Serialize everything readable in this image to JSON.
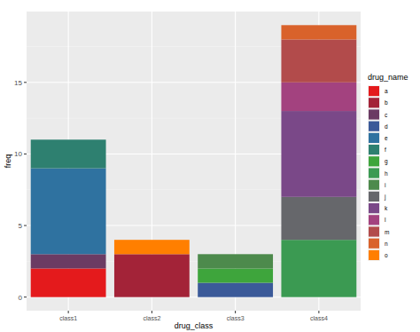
{
  "chart_data": {
    "type": "bar",
    "stacked": true,
    "grid": true,
    "x_label": "drug_class",
    "y_label": "freq",
    "legend_title": "drug_name",
    "legend": "right",
    "categories": [
      "class1",
      "class2",
      "class3",
      "class4"
    ],
    "ylim": [
      -0.95,
      19.95
    ],
    "yticks": [
      0,
      5,
      10,
      15
    ],
    "series": [
      {
        "name": "a",
        "color": "#e41a1c",
        "values": [
          2,
          null,
          null,
          null
        ]
      },
      {
        "name": "b",
        "color": "#a32338",
        "values": [
          null,
          3,
          null,
          null
        ]
      },
      {
        "name": "c",
        "color": "#6b3b63",
        "values": [
          1,
          null,
          null,
          null
        ]
      },
      {
        "name": "d",
        "color": "#3b5a99",
        "values": [
          null,
          null,
          1,
          null
        ]
      },
      {
        "name": "e",
        "color": "#2f72a0",
        "values": [
          6,
          null,
          null,
          null
        ]
      },
      {
        "name": "f",
        "color": "#2e8070",
        "values": [
          2,
          null,
          null,
          null
        ]
      },
      {
        "name": "g",
        "color": "#3ea53c",
        "values": [
          null,
          null,
          1,
          null
        ]
      },
      {
        "name": "h",
        "color": "#3b9a52",
        "values": [
          null,
          null,
          null,
          4
        ]
      },
      {
        "name": "i",
        "color": "#4d8a4c",
        "values": [
          null,
          null,
          1,
          null
        ]
      },
      {
        "name": "j",
        "color": "#66676b",
        "values": [
          null,
          null,
          null,
          3
        ]
      },
      {
        "name": "k",
        "color": "#7a4888",
        "values": [
          null,
          null,
          null,
          6
        ]
      },
      {
        "name": "l",
        "color": "#a3427f",
        "values": [
          null,
          null,
          null,
          2
        ]
      },
      {
        "name": "m",
        "color": "#b24b4b",
        "values": [
          null,
          null,
          null,
          3
        ]
      },
      {
        "name": "n",
        "color": "#d9622b",
        "values": [
          null,
          null,
          null,
          1
        ]
      },
      {
        "name": "o",
        "color": "#ff7f00",
        "values": [
          null,
          1,
          null,
          null
        ]
      }
    ]
  }
}
